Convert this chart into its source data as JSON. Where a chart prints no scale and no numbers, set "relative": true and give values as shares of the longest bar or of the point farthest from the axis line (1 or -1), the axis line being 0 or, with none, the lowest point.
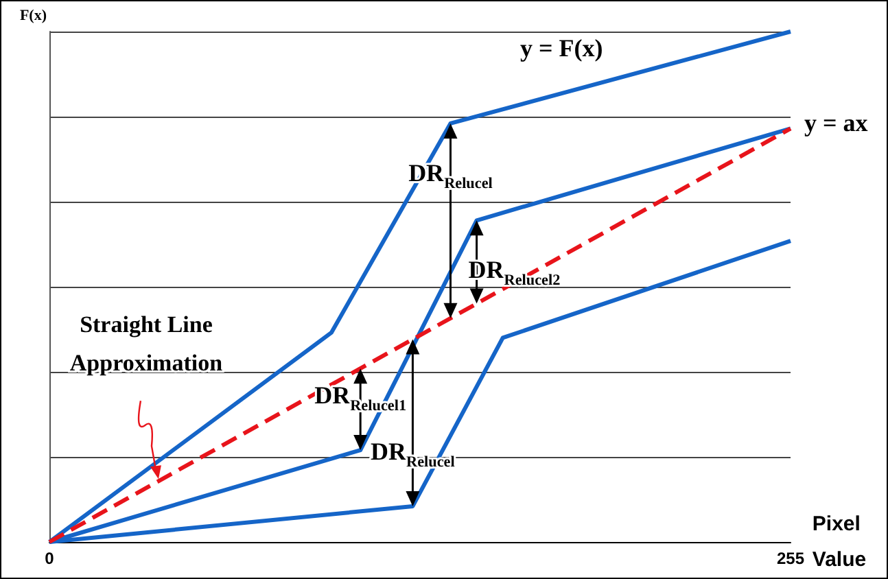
{
  "chart_data": {
    "type": "line",
    "relative": true,
    "ylabel": "F(x)",
    "xlabel": "Pixel Value",
    "xlim": [
      0,
      255
    ],
    "xticks": [
      0,
      255
    ],
    "grid": "y",
    "marker": "none",
    "series": [
      {
        "color": "#1565c8",
        "x": [
          0,
          97,
          138,
          255
        ],
        "values": [
          0,
          0.41,
          0.82,
          1
        ]
      },
      {
        "color": "#1565c8",
        "x": [
          0,
          107,
          147,
          255
        ],
        "values": [
          0,
          0.18,
          0.63,
          0.81
        ]
      },
      {
        "color": "#1565c8",
        "x": [
          0,
          125,
          156,
          255
        ],
        "values": [
          0,
          0.07,
          0.4,
          0.59
        ]
      },
      {
        "color": "#e8141b",
        "line_style": "dashed",
        "x": [
          0,
          255
        ],
        "values": [
          0,
          0.81
        ]
      }
    ],
    "annotations": [
      "y = F(x)",
      {
        "text": "y = ax",
        "x": 255,
        "y": 0.81
      },
      {
        "text": "DR$_{Relucel}$",
        "x": 138,
        "y": 0.82
      },
      {
        "text": "DR$_{Relucel2}$",
        "x": 147,
        "y": 0.63
      },
      {
        "text": "DR$_{Relucel1}$",
        "x": 107,
        "y": 0.18
      },
      {
        "text": "DR$_{Relucel}$",
        "x": 125,
        "y": 0.07
      },
      {
        "text": "Straight Line Approximation",
        "x": 38,
        "y": 0.1206
      }
    ]
  }
}
